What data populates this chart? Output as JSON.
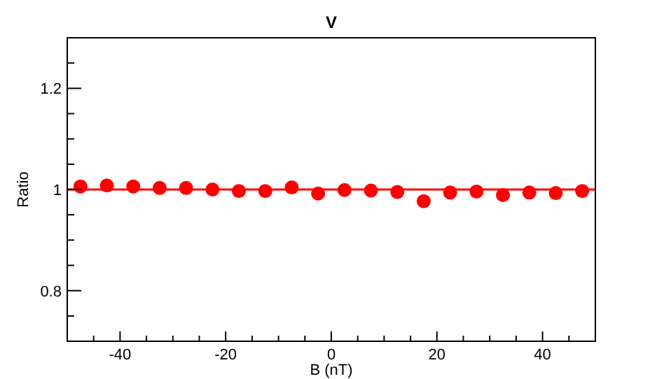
{
  "chart_data": {
    "type": "scatter",
    "title": "V",
    "xlabel": "B (nT)",
    "ylabel": "Ratio",
    "x": [
      -47.5,
      -42.5,
      -37.5,
      -32.5,
      -27.5,
      -22.5,
      -17.5,
      -12.5,
      -7.5,
      -2.5,
      2.5,
      7.5,
      12.5,
      17.5,
      22.5,
      27.5,
      32.5,
      37.5,
      42.5,
      47.5
    ],
    "series": [
      {
        "color": "#ff0000",
        "values": [
          1.006,
          1.008,
          1.006,
          1.003,
          1.003,
          1.0,
          0.997,
          0.997,
          1.004,
          0.992,
          0.999,
          0.998,
          0.995,
          0.977,
          0.994,
          0.996,
          0.989,
          0.994,
          0.993,
          0.997
        ]
      }
    ],
    "marker": "circle",
    "xlim": [
      -50,
      50
    ],
    "ylim": [
      0.7,
      1.3
    ],
    "xticks": [
      {
        "value": -45,
        "label": null
      },
      -40,
      {
        "value": -35,
        "label": null
      },
      {
        "value": -30,
        "label": null
      },
      {
        "value": -25,
        "label": null
      },
      -20,
      {
        "value": -15,
        "label": null
      },
      {
        "value": -10,
        "label": null
      },
      {
        "value": -5,
        "label": null
      },
      0,
      {
        "value": 5,
        "label": null
      },
      {
        "value": 10,
        "label": null
      },
      {
        "value": 15,
        "label": null
      },
      20,
      {
        "value": 25,
        "label": null
      },
      {
        "value": 30,
        "label": null
      },
      {
        "value": 35,
        "label": null
      },
      40,
      {
        "value": 45,
        "label": null
      }
    ],
    "yticks": [
      {
        "value": 0.75,
        "label": null
      },
      0.8,
      {
        "value": 0.85,
        "label": null
      },
      {
        "value": 0.9,
        "label": null
      },
      {
        "value": 0.95,
        "label": null
      },
      1,
      {
        "value": 1.05,
        "label": null
      },
      {
        "value": 1.1,
        "label": null
      },
      {
        "value": 1.15,
        "label": null
      },
      1.2,
      {
        "value": 1.25,
        "label": null
      }
    ],
    "ref_lines": [
      {
        "axis": "y",
        "value": 1,
        "color": "#ff0000",
        "line_style": "solid"
      }
    ],
    "grid": false
  }
}
